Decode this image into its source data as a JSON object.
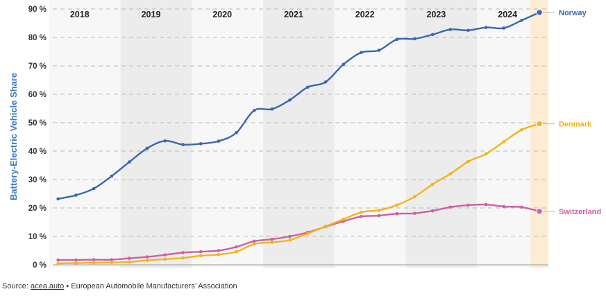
{
  "source": {
    "prefix": "Source:",
    "link": "acea.auto",
    "separator": "•",
    "org": "European Automobile Manufacturers’ Association"
  },
  "colors": {
    "norway": "#3c66ad",
    "denmark": "#f2b418",
    "switzerland": "#cc5fa8",
    "band_light": "#f7f7f7",
    "band_dark": "#ececec",
    "highlight": "#fcecd2",
    "y_title": "#3c7ac0"
  },
  "chart_data": {
    "type": "line",
    "title": "",
    "xlabel": "",
    "ylabel": "Battery-Electric Vehicle Share",
    "ylim": [
      0,
      90
    ],
    "yticks": [
      0,
      10,
      20,
      30,
      40,
      50,
      60,
      70,
      80,
      90
    ],
    "ytick_labels": [
      "0 %",
      "10 %",
      "20 %",
      "30 %",
      "40 %",
      "50 %",
      "60 %",
      "70 %",
      "80 %",
      "90 %"
    ],
    "grid": true,
    "years": [
      "2018",
      "2019",
      "2020",
      "2021",
      "2022",
      "2023",
      "2024"
    ],
    "periods_per_year": 4,
    "x": [
      0,
      1,
      2,
      3,
      4,
      5,
      6,
      7,
      8,
      9,
      10,
      11,
      12,
      13,
      14,
      15,
      16,
      17,
      18,
      19,
      20,
      21,
      22,
      23,
      24,
      25,
      26,
      27
    ],
    "x_range": [
      -0.3,
      27.5
    ],
    "highlight_range": [
      26.5,
      27.5
    ],
    "series": [
      {
        "name": "Norway",
        "color_key": "norway",
        "values": [
          23.2,
          24.5,
          26.8,
          31.2,
          36.2,
          41.0,
          43.6,
          42.3,
          42.6,
          43.5,
          46.5,
          54.3,
          54.8,
          58.0,
          62.5,
          64.3,
          70.5,
          74.7,
          75.5,
          79.3,
          79.5,
          81.0,
          82.8,
          82.5,
          83.5,
          83.3,
          86.0,
          88.8
        ]
      },
      {
        "name": "Denmark",
        "color_key": "denmark",
        "values": [
          0.5,
          0.6,
          0.7,
          0.8,
          1.0,
          1.6,
          2.0,
          2.4,
          3.2,
          3.6,
          4.6,
          7.3,
          7.9,
          8.7,
          11.0,
          13.5,
          16.0,
          18.5,
          19.2,
          21.0,
          24.0,
          28.3,
          32.0,
          36.3,
          39.0,
          43.3,
          47.5,
          49.6
        ]
      },
      {
        "name": "Switzerland",
        "color_key": "switzerland",
        "values": [
          1.7,
          1.7,
          1.8,
          1.8,
          2.3,
          2.8,
          3.5,
          4.3,
          4.6,
          5.0,
          6.3,
          8.3,
          9.0,
          10.0,
          11.4,
          13.4,
          15.3,
          17.0,
          17.3,
          18.0,
          18.1,
          19.0,
          20.3,
          21.0,
          21.2,
          20.5,
          20.3,
          18.8
        ]
      }
    ]
  }
}
